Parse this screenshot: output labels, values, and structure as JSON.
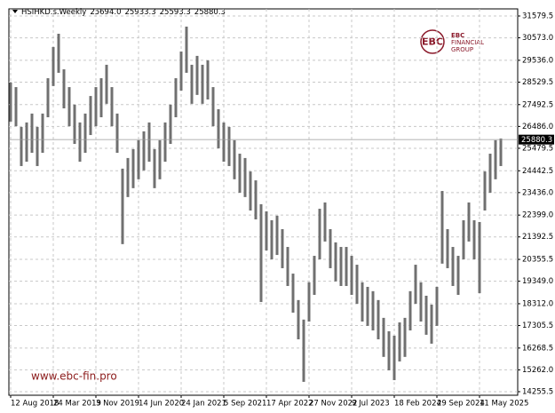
{
  "chart_data": {
    "type": "range_bar",
    "title": "HSIHKD.s.Weekly",
    "quote": [
      {
        "value": 25694.0,
        "label": "25694.0"
      },
      25933.3,
      25593.3,
      25880.3
    ],
    "watermark": "www.ebc-fin.pro",
    "logo": {
      "mark": "EBC",
      "lines": [
        "EBC",
        "FINANCIAL",
        "GROUP"
      ]
    },
    "color": "#707070",
    "grid": true,
    "categories": [
      "12 Aug 2018",
      null,
      null,
      null,
      null,
      null,
      null,
      null,
      "24 Mar 2019",
      null,
      null,
      null,
      null,
      null,
      null,
      null,
      "3 Nov 2019",
      null,
      null,
      null,
      null,
      null,
      null,
      null,
      "14 Jun 2020",
      null,
      null,
      null,
      null,
      null,
      null,
      null,
      "24 Jan 2021",
      null,
      null,
      null,
      null,
      null,
      null,
      null,
      "5 Sep 2021",
      null,
      null,
      null,
      null,
      null,
      null,
      null,
      "17 Apr 2022",
      null,
      null,
      null,
      null,
      null,
      null,
      null,
      "27 Nov 2022",
      null,
      null,
      null,
      null,
      null,
      null,
      null,
      "9 Jul 2023",
      null,
      null,
      null,
      null,
      null,
      null,
      null,
      "18 Feb 2024",
      null,
      null,
      null,
      null,
      null,
      null,
      null,
      "29 Sep 2024",
      null,
      null,
      null,
      null,
      null,
      null,
      null,
      "11 May 2025",
      null,
      null,
      null,
      null
    ],
    "high": [
      28510,
      28300,
      26460,
      26670,
      27080,
      26460,
      27080,
      28710,
      30150,
      30760,
      29120,
      28300,
      27490,
      26670,
      27080,
      27890,
      28300,
      28710,
      29330,
      28300,
      27080,
      24540,
      25030,
      25440,
      25850,
      26260,
      26670,
      25440,
      25850,
      26670,
      27490,
      28710,
      29940,
      31090,
      29330,
      29740,
      29330,
      29530,
      28300,
      27280,
      26670,
      26460,
      25850,
      25230,
      25030,
      24410,
      24000,
      22900,
      22570,
      22160,
      22370,
      21750,
      20930,
      19700,
      18480,
      17580,
      19300,
      20520,
      22690,
      22980,
      21750,
      21140,
      20930,
      20930,
      20520,
      20110,
      19300,
      19090,
      18890,
      18480,
      17660,
      17040,
      16840,
      17450,
      17660,
      18890,
      20110,
      19300,
      18680,
      18270,
      19090,
      23510,
      21750,
      20930,
      20520,
      22160,
      22980,
      22160,
      22080,
      24410,
      25230,
      25850,
      25930
    ],
    "low": [
      26710,
      26500,
      24660,
      24860,
      25270,
      24660,
      25270,
      26910,
      28350,
      28960,
      27320,
      26500,
      25680,
      24860,
      25270,
      26090,
      26500,
      26910,
      27530,
      26500,
      25270,
      21060,
      23230,
      23640,
      24050,
      24460,
      24860,
      23640,
      24050,
      24860,
      25680,
      26910,
      28140,
      28960,
      27530,
      27940,
      27530,
      27730,
      26500,
      25480,
      24860,
      24660,
      24050,
      23430,
      23230,
      22610,
      22200,
      18390,
      20770,
      20360,
      20560,
      19950,
      19130,
      17900,
      16670,
      14710,
      17490,
      18720,
      20360,
      21180,
      19950,
      19340,
      19130,
      19130,
      18720,
      18310,
      17490,
      17290,
      17080,
      16670,
      15860,
      15240,
      14790,
      15650,
      15860,
      17080,
      18310,
      17490,
      16880,
      16470,
      17290,
      20160,
      19950,
      19130,
      18720,
      20360,
      21180,
      20360,
      18800,
      22610,
      23430,
      24050,
      24660
    ],
    "ylim": [
      14092,
      31907
    ],
    "yticks": [
      14255.5,
      {
        "value": 15262.0,
        "label": "15262.0"
      },
      16268.5,
      17305.5,
      {
        "value": 18312.0,
        "label": "18312.0"
      },
      {
        "value": 19349.0,
        "label": "19349.0"
      },
      20355.5,
      21392.5,
      {
        "value": 22399.0,
        "label": "22399.0"
      },
      {
        "value": 23436.0,
        "label": "23436.0"
      },
      24442.5,
      25479.5,
      {
        "value": 26486.0,
        "label": "26486.0"
      },
      27492.5,
      28529.5,
      {
        "value": 29536.0,
        "label": "29536.0"
      },
      {
        "value": 30573.0,
        "label": "30573.0"
      },
      31579.5
    ]
  }
}
